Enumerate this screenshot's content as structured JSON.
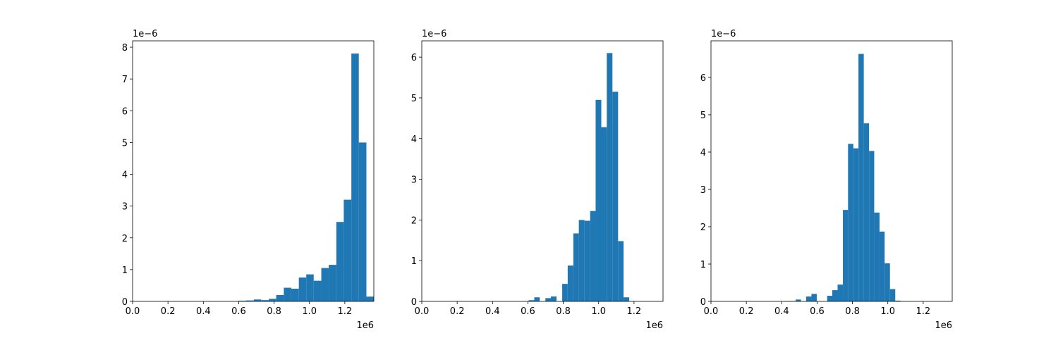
{
  "chart_data": [
    {
      "type": "histogram",
      "color": "#1f77b4",
      "bins": [
        0.6,
        0.642,
        0.685,
        0.727,
        0.77,
        0.812,
        0.855,
        0.897,
        0.94,
        0.982,
        1.024,
        1.067,
        1.109,
        1.152,
        1.194,
        1.237,
        1.279,
        1.322,
        1.364
      ],
      "values": [
        0.02,
        0.03,
        0.06,
        0.04,
        0.08,
        0.2,
        0.43,
        0.4,
        0.75,
        0.85,
        0.65,
        1.05,
        1.15,
        2.5,
        3.2,
        7.8,
        5.0,
        0.15
      ],
      "xlim": [
        0,
        1.364
      ],
      "xticks": [
        {
          "value": 0,
          "label": "0.0"
        },
        {
          "value": 0.2,
          "label": "0.2"
        },
        {
          "value": 0.4,
          "label": "0.4"
        },
        {
          "value": 0.6,
          "label": "0.6"
        },
        {
          "value": 0.8,
          "label": "0.8"
        },
        {
          "value": 1,
          "label": "1.0"
        },
        {
          "value": 1.2,
          "label": "1.2"
        }
      ],
      "ylim": [
        0,
        8.2
      ],
      "yticks": [
        0,
        1,
        2,
        3,
        4,
        5,
        6,
        7,
        8
      ],
      "x_offset_label": "1e6",
      "y_offset_label": "1e−6"
    },
    {
      "type": "histogram",
      "color": "#1f77b4",
      "bins": [
        0.604,
        0.636,
        0.667,
        0.699,
        0.73,
        0.762,
        0.794,
        0.825,
        0.857,
        0.888,
        0.92,
        0.952,
        0.983,
        1.015,
        1.046,
        1.078,
        1.11,
        1.141,
        1.173
      ],
      "values": [
        0.03,
        0.1,
        0,
        0.08,
        0.12,
        0,
        0.43,
        0.88,
        1.67,
        2.0,
        1.98,
        2.22,
        4.95,
        4.28,
        6.1,
        5.15,
        1.48,
        0.1
      ],
      "xlim": [
        0,
        1.364
      ],
      "xticks": [
        {
          "value": 0,
          "label": "0.0"
        },
        {
          "value": 0.2,
          "label": "0.2"
        },
        {
          "value": 0.4,
          "label": "0.4"
        },
        {
          "value": 0.6,
          "label": "0.6"
        },
        {
          "value": 0.8,
          "label": "0.8"
        },
        {
          "value": 1,
          "label": "1.0"
        },
        {
          "value": 1.2,
          "label": "1.2"
        }
      ],
      "ylim": [
        0,
        6.4
      ],
      "yticks": [
        0,
        1,
        2,
        3,
        4,
        5,
        6
      ],
      "x_offset_label": "1e6",
      "y_offset_label": "1e−6"
    },
    {
      "type": "histogram",
      "color": "#1f77b4",
      "bins": [
        0.42,
        0.45,
        0.479,
        0.509,
        0.538,
        0.568,
        0.598,
        0.627,
        0.657,
        0.686,
        0.716,
        0.746,
        0.775,
        0.805,
        0.834,
        0.864,
        0.894,
        0.923,
        0.953,
        0.982,
        1.012,
        1.042,
        1.071
      ],
      "values": [
        0.01,
        0.01,
        0.05,
        0,
        0.13,
        0.2,
        0,
        0,
        0.15,
        0.3,
        0.45,
        2.45,
        4.22,
        4.1,
        6.63,
        4.77,
        4.03,
        2.38,
        1.87,
        1.02,
        0.33,
        0.02
      ],
      "xlim": [
        0,
        1.364
      ],
      "xticks": [
        {
          "value": 0,
          "label": "0.0"
        },
        {
          "value": 0.2,
          "label": "0.2"
        },
        {
          "value": 0.4,
          "label": "0.4"
        },
        {
          "value": 0.6,
          "label": "0.6"
        },
        {
          "value": 0.8,
          "label": "0.8"
        },
        {
          "value": 1,
          "label": "1.0"
        },
        {
          "value": 1.2,
          "label": "1.2"
        }
      ],
      "ylim": [
        0,
        6.98
      ],
      "yticks": [
        0,
        1,
        2,
        3,
        4,
        5,
        6
      ],
      "x_offset_label": "1e6",
      "y_offset_label": "1e−6"
    }
  ]
}
